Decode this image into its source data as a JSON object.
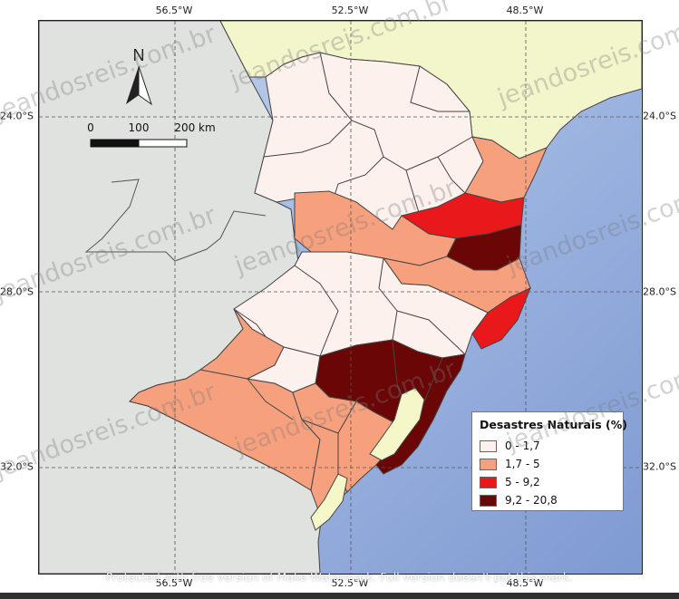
{
  "graticule": {
    "longitudes": [
      "56.5°W",
      "52.5°W",
      "48.5°W"
    ],
    "latitudes": [
      "24.0°S",
      "28.0°S",
      "32.0°S"
    ]
  },
  "north_arrow": {
    "label": "N"
  },
  "scale_bar": {
    "labels": [
      "0",
      "100",
      "200 km"
    ]
  },
  "legend": {
    "title": "Desastres Naturais (%)",
    "classes": [
      {
        "label": "0 - 1,7",
        "color": "#fdf1ee"
      },
      {
        "label": "1,7 - 5",
        "color": "#f7a07e"
      },
      {
        "label": "5 - 9,2",
        "color": "#e8181b"
      },
      {
        "label": "9,2 - 20,8",
        "color": "#6b0606"
      }
    ]
  },
  "watermark": {
    "text": "jeandosreis.com.br"
  },
  "notice": "Protected with free version of Make Watermark. Full version doesn't put this mark.",
  "colors": {
    "ocean": "#a9bde0",
    "neighbor_land": "#dfe2de",
    "neighbor_state": "#f3f5cb",
    "lagoon": "#f6f7c9"
  }
}
